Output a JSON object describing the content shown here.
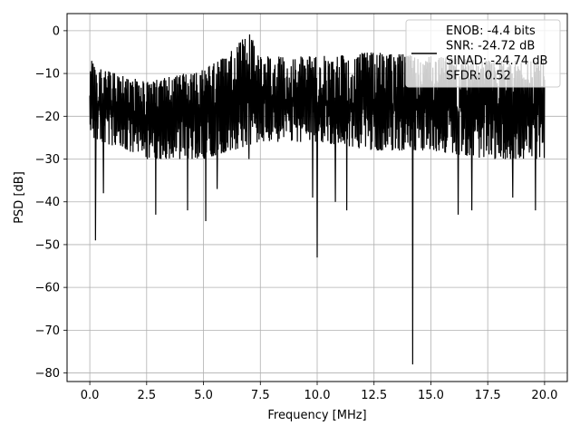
{
  "chart_data": {
    "type": "line",
    "xlabel": "Frequency [MHz]",
    "ylabel": "PSD [dB]",
    "xlim": [
      -1.0,
      21.0
    ],
    "ylim": [
      -82.0,
      4.0
    ],
    "xticks": [
      0.0,
      2.5,
      5.0,
      7.5,
      10.0,
      12.5,
      15.0,
      17.5,
      20.0
    ],
    "xtick_labels": [
      "0.0",
      "2.5",
      "5.0",
      "7.5",
      "10.0",
      "12.5",
      "15.0",
      "17.5",
      "20.0"
    ],
    "yticks": [
      0,
      -10,
      -20,
      -30,
      -40,
      -50,
      -60,
      -70,
      -80
    ],
    "ytick_labels": [
      "0",
      "−10",
      "−20",
      "−30",
      "−40",
      "−50",
      "−60",
      "−70",
      "−80"
    ],
    "grid": true,
    "legend_position": "top-right",
    "line_color": "#000000",
    "legend_lines": [
      "ENOB: -4.4 bits",
      "SNR: -24.72 dB",
      "SINAD: -24.74 dB",
      "SFDR: 0.52"
    ],
    "series": [
      {
        "envelope_top": [
          [
            0.0,
            -5.5
          ],
          [
            0.5,
            -9
          ],
          [
            2.5,
            -12
          ],
          [
            5.0,
            -9
          ],
          [
            6.0,
            -6
          ],
          [
            7.0,
            0
          ],
          [
            7.5,
            -6
          ],
          [
            10.0,
            -6
          ],
          [
            12.5,
            -5
          ],
          [
            15.0,
            -6
          ],
          [
            17.5,
            -7
          ],
          [
            20.0,
            -7
          ]
        ],
        "envelope_bottom": [
          [
            0.0,
            -25
          ],
          [
            2.5,
            -30
          ],
          [
            5.0,
            -30
          ],
          [
            7.5,
            -26
          ],
          [
            10.0,
            -26
          ],
          [
            12.5,
            -28
          ],
          [
            15.0,
            -28
          ],
          [
            17.5,
            -30
          ],
          [
            20.0,
            -30
          ]
        ],
        "notches": [
          [
            0.25,
            -49
          ],
          [
            0.6,
            -38
          ],
          [
            2.9,
            -43
          ],
          [
            4.3,
            -42
          ],
          [
            5.1,
            -44.5
          ],
          [
            5.6,
            -37
          ],
          [
            7.0,
            -30
          ],
          [
            9.8,
            -39
          ],
          [
            10.0,
            -53
          ],
          [
            10.8,
            -40
          ],
          [
            11.3,
            -42
          ],
          [
            14.2,
            -78
          ],
          [
            16.2,
            -43
          ],
          [
            16.8,
            -42
          ],
          [
            18.6,
            -39
          ],
          [
            19.6,
            -42
          ]
        ]
      }
    ]
  }
}
